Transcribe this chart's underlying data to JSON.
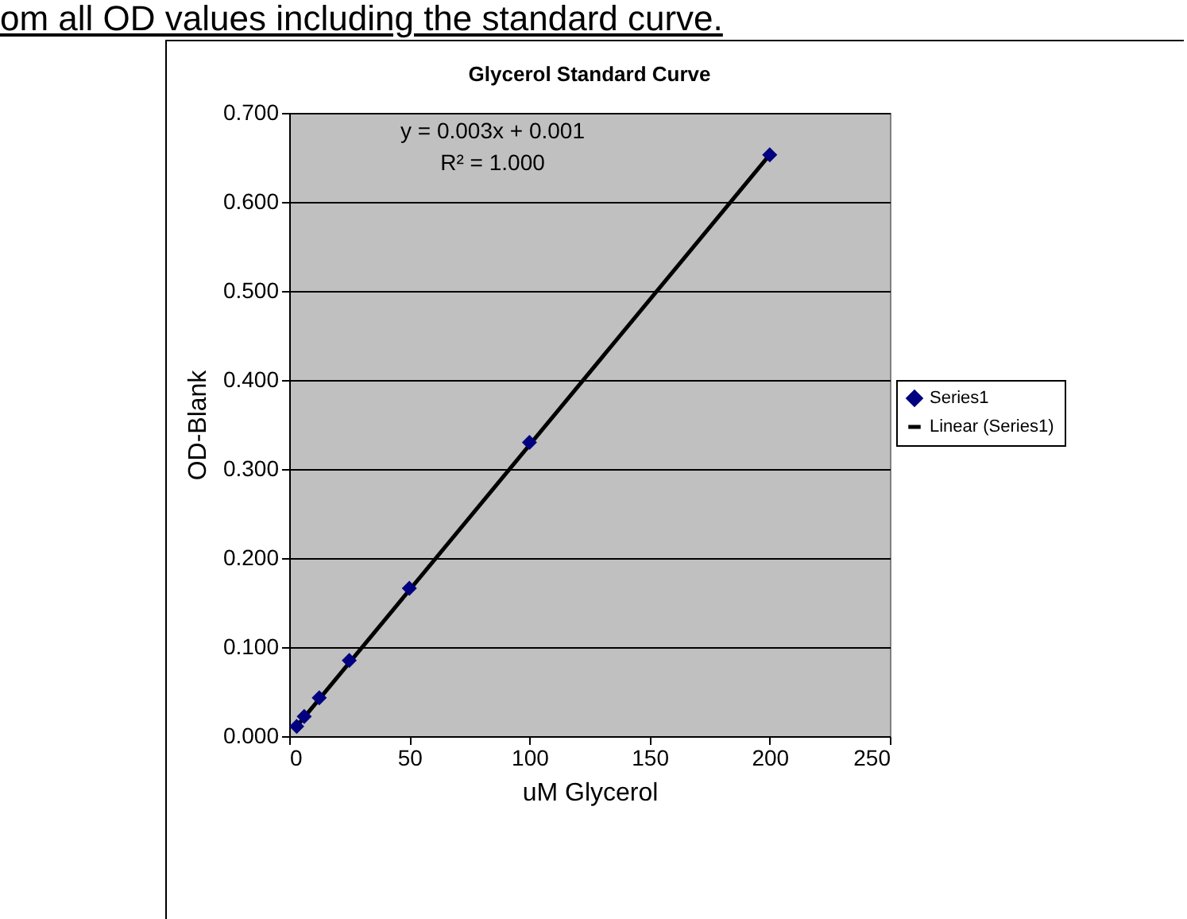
{
  "chart_data": {
    "type": "scatter",
    "title": "Glycerol Standard Curve",
    "xlabel": "uM Glycerol",
    "ylabel": "OD-Blank",
    "annotations": [
      "om all OD values including the standard curve.",
      "y = 0.003x + 0.001",
      "R² = 1.000"
    ],
    "xlim": [
      0,
      250
    ],
    "xticks": [
      0,
      50,
      100,
      150,
      200,
      250
    ],
    "ylim": [
      0,
      0.7
    ],
    "yticks": [
      {
        "value": 0,
        "label": "0.000"
      },
      {
        "value": 0.1,
        "label": "0.100"
      },
      {
        "value": 0.2,
        "label": "0.200"
      },
      {
        "value": 0.3,
        "label": "0.300"
      },
      {
        "value": 0.4,
        "label": "0.400"
      },
      {
        "value": 0.5,
        "label": "0.500"
      },
      {
        "value": 0.6,
        "label": "0.600"
      },
      {
        "value": 0.7,
        "label": "0.700"
      }
    ],
    "grid": "y",
    "legend": "right",
    "series": [
      {
        "name": "Series1",
        "marker": "diamond",
        "color": "#000080",
        "x": [
          3.125,
          6.25,
          12.5,
          25,
          50,
          100,
          200
        ],
        "values": [
          0.011,
          0.022,
          0.043,
          0.085,
          0.166,
          0.33,
          0.653
        ]
      },
      {
        "name": "Linear (Series1)",
        "type": "line",
        "color": "#000000",
        "x": [
          3.125,
          200
        ],
        "values": [
          0.011,
          0.653
        ]
      }
    ]
  }
}
